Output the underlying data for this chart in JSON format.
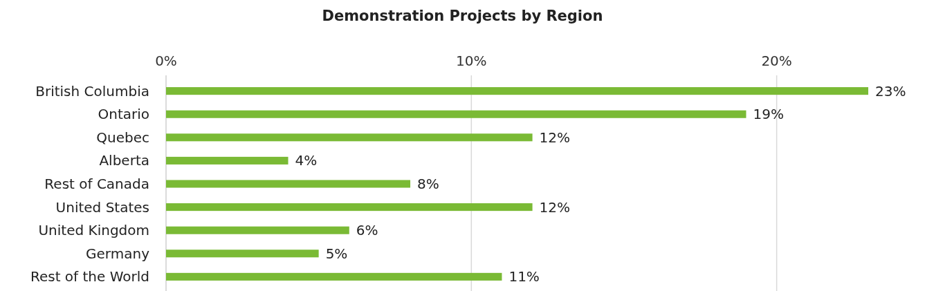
{
  "chart_data": {
    "type": "bar",
    "orientation": "horizontal",
    "title": "Demonstration Projects by Region",
    "categories": [
      "British Columbia",
      "Ontario",
      "Quebec",
      "Alberta",
      "Rest of Canada",
      "United States",
      "United Kingdom",
      "Germany",
      "Rest of the World"
    ],
    "values": [
      23,
      19,
      12,
      4,
      8,
      12,
      6,
      5,
      11
    ],
    "value_labels": [
      "23%",
      "19%",
      "12%",
      "4%",
      "8%",
      "12%",
      "6%",
      "5%",
      "11%"
    ],
    "color": "#7aba35",
    "xlim": [
      0,
      23
    ],
    "xticks": [
      {
        "value": 0,
        "label": "0%"
      },
      {
        "value": 10,
        "label": "10%"
      },
      {
        "value": 20,
        "label": "20%"
      }
    ],
    "grid": "x"
  }
}
